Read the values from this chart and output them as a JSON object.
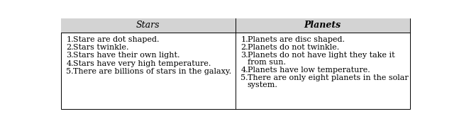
{
  "header_bg": "#d3d3d3",
  "header_text_color": "#000000",
  "body_bg": "#ffffff",
  "border_color": "#000000",
  "col1_header": "Stars",
  "col2_header": "Planets",
  "col1_items": [
    "Stare are dot shaped.",
    "Stars twinkle.",
    "Stars have their own light.",
    "Stars have very high temperature.",
    "There are billions of stars in the galaxy."
  ],
  "col2_items_line1": [
    "Planets are disc shaped.",
    "Planets do not twinkle.",
    "Planets do not have light they take it",
    "Planets have low temperature.",
    "There are only eight planets in the solar"
  ],
  "col2_items_line2": [
    "",
    "",
    "from sun.",
    "",
    "system."
  ],
  "font_size": 8.0,
  "header_font_size": 9.0,
  "fig_width": 6.47,
  "fig_height": 1.78,
  "dpi": 100
}
